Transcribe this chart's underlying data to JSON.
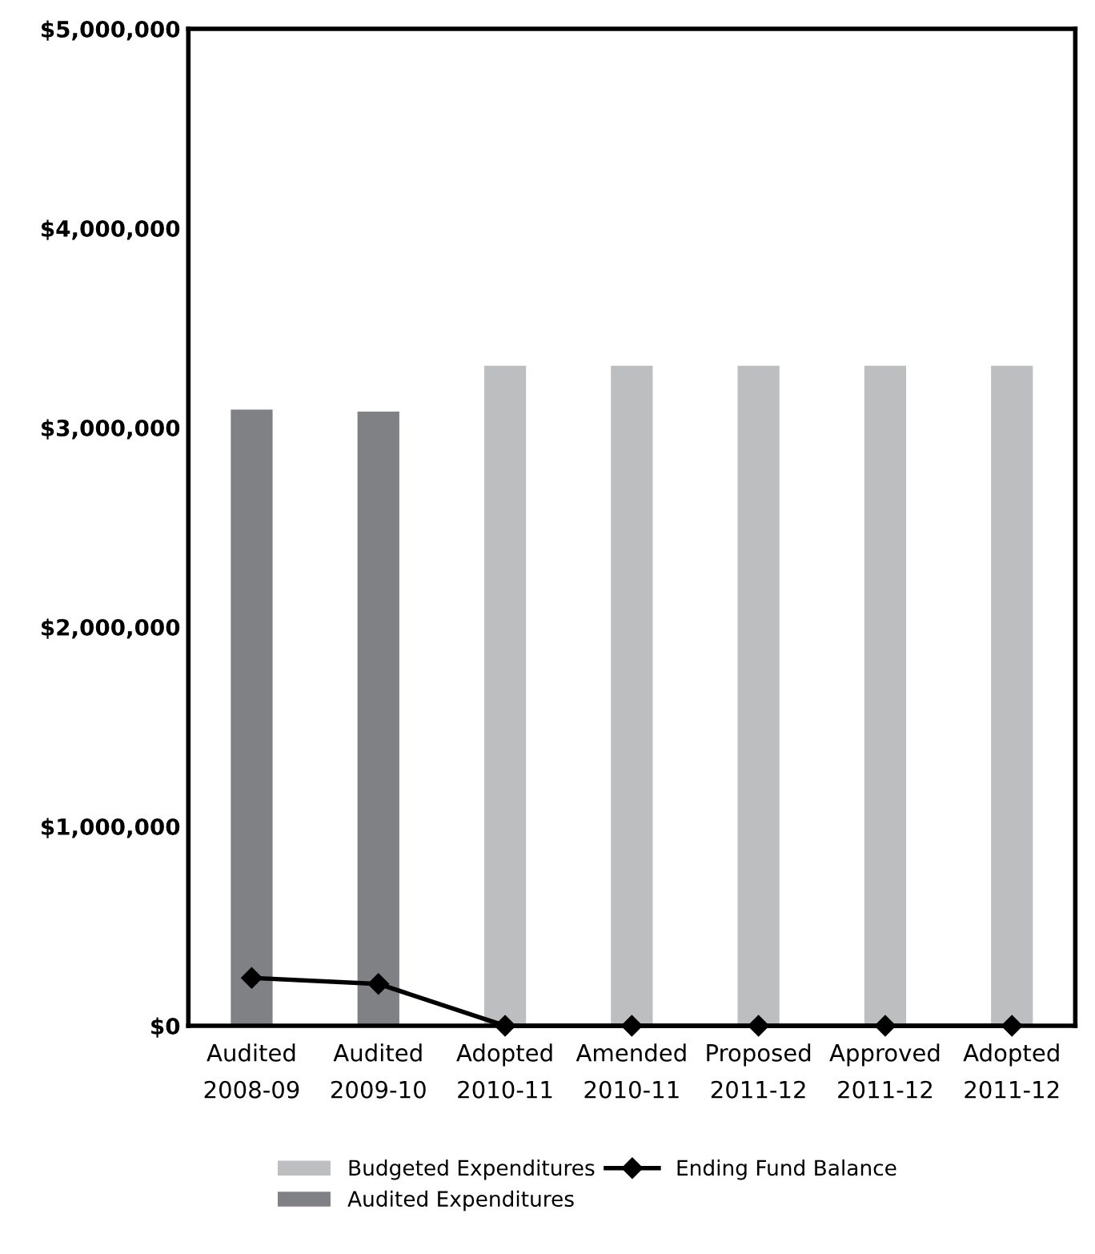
{
  "chart_data": {
    "type": "bar",
    "categories": [
      "Audited\n2008-09",
      "Audited\n2009-10",
      "Adopted\n2010-11",
      "Amended\n2010-11",
      "Proposed\n2011-12",
      "Approved\n2011-12",
      "Adopted\n2011-12"
    ],
    "series": [
      {
        "name": "Budgeted Expenditures",
        "color": "#bdbec0",
        "values": [
          null,
          null,
          3310000,
          3310000,
          3310000,
          3310000,
          3310000
        ]
      },
      {
        "name": "Ending Fund Balance",
        "type": "line",
        "color": "#000000",
        "marker": "diamond",
        "values": [
          240000,
          210000,
          0,
          0,
          0,
          0,
          0
        ]
      },
      {
        "name": "Audited Expenditures",
        "color": "#808184",
        "values": [
          3090000,
          3080000,
          null,
          null,
          null,
          null,
          null
        ]
      }
    ],
    "ylim": [
      0,
      5000000
    ],
    "yticks": [
      {
        "value": 0,
        "label": "$0"
      },
      {
        "value": 1000000,
        "label": "$1,000,000"
      },
      {
        "value": 2000000,
        "label": "$2,000,000"
      },
      {
        "value": 3000000,
        "label": "$3,000,000"
      },
      {
        "value": 4000000,
        "label": "$4,000,000"
      },
      {
        "value": 5000000,
        "label": "$5,000,000"
      }
    ],
    "grid": false,
    "legend": "bottom"
  }
}
